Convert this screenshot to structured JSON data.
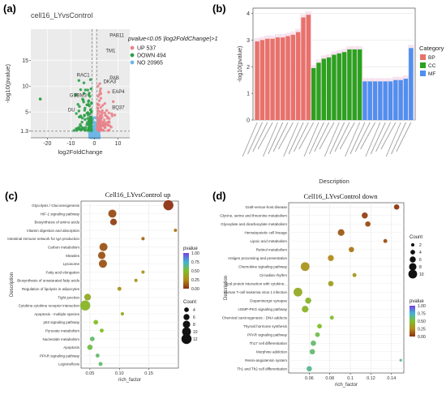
{
  "panels": {
    "a": {
      "letter": "(a)"
    },
    "b": {
      "letter": "(b)"
    },
    "c": {
      "letter": "(c)"
    },
    "d": {
      "letter": "(d)"
    }
  },
  "chart_data": [
    {
      "id": "a",
      "type": "scatter",
      "title": "cell16_LYvsControl",
      "xlabel": "log2FoldChange",
      "ylabel": "-log10(pvalue)",
      "xticks": [
        -20,
        -10,
        0,
        10
      ],
      "yticks": [
        1.3,
        5,
        10,
        15
      ],
      "xlim": [
        -27,
        15
      ],
      "ylim": [
        0,
        21
      ],
      "legend_title": "pvalue<0.05 |log2FoldChange|>1",
      "legend": [
        {
          "label": "UP 537",
          "color": "#e8828a"
        },
        {
          "label": "DOWN 494",
          "color": "#2e9e47"
        },
        {
          "label": "NO 20965",
          "color": "#6db7e6"
        }
      ],
      "threshold_y": 1.3,
      "threshold_x": [
        -1,
        1
      ],
      "gene_labels": [
        {
          "text": "PAB11",
          "x": 6.5,
          "y": 19.5
        },
        {
          "text": "TM1",
          "x": 4.8,
          "y": 16.5
        },
        {
          "text": "RAC1",
          "x": -7.5,
          "y": 11.8
        },
        {
          "text": "PAB",
          "x": 6.5,
          "y": 11.3
        },
        {
          "text": "DKA3",
          "x": 3.8,
          "y": 10.6
        },
        {
          "text": "GSBM3",
          "x": -10.5,
          "y": 7.9
        },
        {
          "text": "EAP4",
          "x": 7.5,
          "y": 8.6
        },
        {
          "text": "DU",
          "x": -11.2,
          "y": 5.1
        },
        {
          "text": "BQ37",
          "x": 7.5,
          "y": 5.6
        }
      ]
    },
    {
      "id": "b",
      "type": "bar",
      "xlabel": "Description",
      "ylabel": "-log10(pvalue)",
      "yticks": [
        0,
        1,
        2,
        3,
        4
      ],
      "ylim": [
        0,
        4.2
      ],
      "legend_title": "Category",
      "legend": [
        {
          "label": "BP",
          "color": "#e8726a"
        },
        {
          "label": "CC",
          "color": "#2aa21e"
        },
        {
          "label": "MF",
          "color": "#4f8ff0"
        }
      ],
      "bars": [
        {
          "cat": "BP",
          "value": 2.95
        },
        {
          "cat": "BP",
          "value": 3.0
        },
        {
          "cat": "BP",
          "value": 3.05
        },
        {
          "cat": "BP",
          "value": 3.05
        },
        {
          "cat": "BP",
          "value": 3.1
        },
        {
          "cat": "BP",
          "value": 3.1
        },
        {
          "cat": "BP",
          "value": 3.15
        },
        {
          "cat": "BP",
          "value": 3.2
        },
        {
          "cat": "BP",
          "value": 3.3
        },
        {
          "cat": "BP",
          "value": 3.85
        },
        {
          "cat": "BP",
          "value": 3.95
        },
        {
          "cat": "CC",
          "value": 1.95
        },
        {
          "cat": "CC",
          "value": 2.15
        },
        {
          "cat": "CC",
          "value": 2.3
        },
        {
          "cat": "CC",
          "value": 2.35
        },
        {
          "cat": "CC",
          "value": 2.45
        },
        {
          "cat": "CC",
          "value": 2.5
        },
        {
          "cat": "CC",
          "value": 2.55
        },
        {
          "cat": "CC",
          "value": 2.65
        },
        {
          "cat": "CC",
          "value": 2.65
        },
        {
          "cat": "CC",
          "value": 2.65
        },
        {
          "cat": "MF",
          "value": 1.45
        },
        {
          "cat": "MF",
          "value": 1.45
        },
        {
          "cat": "MF",
          "value": 1.45
        },
        {
          "cat": "MF",
          "value": 1.45
        },
        {
          "cat": "MF",
          "value": 1.45
        },
        {
          "cat": "MF",
          "value": 1.45
        },
        {
          "cat": "MF",
          "value": 1.5
        },
        {
          "cat": "MF",
          "value": 1.5
        },
        {
          "cat": "MF",
          "value": 1.55
        },
        {
          "cat": "MF",
          "value": 2.7
        }
      ]
    },
    {
      "id": "c",
      "type": "scatter",
      "title": "Cell16_LYvsControl up",
      "xlabel": "rich_factor",
      "ylabel": "Description",
      "xticks": [
        0.05,
        0.1,
        0.15
      ],
      "xlim": [
        0.035,
        0.2
      ],
      "size_title": "Count",
      "size_levels": [
        4,
        6,
        8,
        10,
        12
      ],
      "color_title": "pvalue",
      "color_ticks": [
        1.0,
        0.75,
        0.5,
        0.25,
        0.0
      ],
      "color_ticks_label": [
        "1.00",
        "0.75",
        "0.50",
        "0.25",
        "0.00"
      ],
      "terms": [
        {
          "label": "Glycolysis / Gluconeogenesis",
          "x": 0.183,
          "count": 12,
          "p": 0.01
        },
        {
          "label": "HIF-1 signaling pathway",
          "x": 0.088,
          "count": 9,
          "p": 0.08
        },
        {
          "label": "Biosynthesis of amino acids",
          "x": 0.09,
          "count": 7,
          "p": 0.05
        },
        {
          "label": "Vitamin digestion and absorption",
          "x": 0.195,
          "count": 2,
          "p": 0.2
        },
        {
          "label": "Intestinal immune network for IgA production",
          "x": 0.14,
          "count": 2,
          "p": 0.15
        },
        {
          "label": "Carbon metabolism",
          "x": 0.073,
          "count": 9,
          "p": 0.1
        },
        {
          "label": "Measles",
          "x": 0.07,
          "count": 8,
          "p": 0.1
        },
        {
          "label": "Lysosome",
          "x": 0.072,
          "count": 9,
          "p": 0.1
        },
        {
          "label": "Fatty acid elongation",
          "x": 0.14,
          "count": 2,
          "p": 0.3
        },
        {
          "label": "Biosynthesis of unsaturated fatty acids",
          "x": 0.128,
          "count": 2,
          "p": 0.3
        },
        {
          "label": "Regulation of lipolysis in adipocytes",
          "x": 0.1,
          "count": 3,
          "p": 0.3
        },
        {
          "label": "Tight junction",
          "x": 0.046,
          "count": 7,
          "p": 0.4
        },
        {
          "label": "Cytokine-cytokine receptor interaction",
          "x": 0.042,
          "count": 12,
          "p": 0.45
        },
        {
          "label": "Apoptosis - multiple species",
          "x": 0.105,
          "count": 2,
          "p": 0.4
        },
        {
          "label": "p53 signaling pathway",
          "x": 0.06,
          "count": 4,
          "p": 0.5
        },
        {
          "label": "Pyruvate metabolism",
          "x": 0.07,
          "count": 3,
          "p": 0.5
        },
        {
          "label": "Nucleotide metabolism",
          "x": 0.054,
          "count": 4,
          "p": 0.6
        },
        {
          "label": "Apoptosis",
          "x": 0.05,
          "count": 5,
          "p": 0.55
        },
        {
          "label": "PPAR signaling pathway",
          "x": 0.063,
          "count": 3,
          "p": 0.6
        },
        {
          "label": "Legionellosis",
          "x": 0.068,
          "count": 3,
          "p": 0.6
        }
      ]
    },
    {
      "id": "d",
      "type": "scatter",
      "title": "Cell16_LYvsControl down",
      "xlabel": "rich_factor",
      "ylabel": "Description",
      "xticks": [
        0.06,
        0.08,
        0.1,
        0.12,
        0.14
      ],
      "xlim": [
        0.04,
        0.152
      ],
      "size_title": "Count",
      "size_levels": [
        2,
        4,
        6,
        8,
        10
      ],
      "color_title": "pvalue",
      "color_ticks": [
        1.0,
        0.75,
        0.5,
        0.25,
        0.0
      ],
      "color_ticks_label": [
        "1.00",
        "0.75",
        "0.50",
        "0.25",
        "0.00"
      ],
      "terms": [
        {
          "label": "Graft-versus-host disease",
          "x": 0.145,
          "count": 5,
          "p": 0.02
        },
        {
          "label": "Glycine, serine and threonine metabolism",
          "x": 0.114,
          "count": 6,
          "p": 0.05
        },
        {
          "label": "Glyoxylate and dicarboxylate metabolism",
          "x": 0.117,
          "count": 5,
          "p": 0.08
        },
        {
          "label": "Hematopoietic cell lineage",
          "x": 0.091,
          "count": 7,
          "p": 0.12
        },
        {
          "label": "Lipoic acid metabolism",
          "x": 0.134,
          "count": 3,
          "p": 0.1
        },
        {
          "label": "Retinol metabolism",
          "x": 0.101,
          "count": 5,
          "p": 0.2
        },
        {
          "label": "Antigen processing and presentation",
          "x": 0.081,
          "count": 6,
          "p": 0.25
        },
        {
          "label": "Chemokine signaling pathway",
          "x": 0.056,
          "count": 10,
          "p": 0.3
        },
        {
          "label": "Circadian rhythm",
          "x": 0.104,
          "count": 3,
          "p": 0.3
        },
        {
          "label": "Viral protein interaction with cytokine...",
          "x": 0.081,
          "count": 5,
          "p": 0.35
        },
        {
          "label": "Human T-cell leukemia virus 1 infection",
          "x": 0.049,
          "count": 10,
          "p": 0.4
        },
        {
          "label": "Dopaminergic synapse",
          "x": 0.059,
          "count": 6,
          "p": 0.45
        },
        {
          "label": "cGMP-PKG signaling pathway",
          "x": 0.056,
          "count": 7,
          "p": 0.45
        },
        {
          "label": "Chemical carcinogenesis - DNA adducts",
          "x": 0.082,
          "count": 3,
          "p": 0.5
        },
        {
          "label": "Thyroid hormone synthesis",
          "x": 0.07,
          "count": 4,
          "p": 0.5
        },
        {
          "label": "PPAR signaling pathway",
          "x": 0.068,
          "count": 4,
          "p": 0.55
        },
        {
          "label": "Th17 cell differentiation",
          "x": 0.064,
          "count": 5,
          "p": 0.6
        },
        {
          "label": "Morphine addiction",
          "x": 0.063,
          "count": 5,
          "p": 0.6
        },
        {
          "label": "Renin-angiotensin system",
          "x": 0.149,
          "count": 1,
          "p": 0.65
        },
        {
          "label": "Th1 and Th2 cell differentiation",
          "x": 0.06,
          "count": 5,
          "p": 0.65
        }
      ]
    }
  ]
}
